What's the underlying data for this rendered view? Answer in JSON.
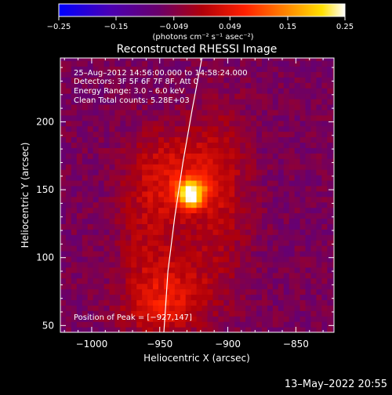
{
  "chart_data": {
    "type": "heatmap",
    "title": "Reconstructed RHESSI Image",
    "xlabel": "Heliocentric X (arcsec)",
    "ylabel": "Heliocentric Y (arcsec)",
    "xlim": [
      -1023,
      -822
    ],
    "ylim": [
      45,
      247
    ],
    "xticks": [
      -1000,
      -950,
      -900,
      -850
    ],
    "yticks": [
      50,
      100,
      150,
      200
    ],
    "xtick_labels": [
      "−1000",
      "−950",
      "−900",
      "−850"
    ],
    "ytick_labels": [
      "50",
      "100",
      "150",
      "200"
    ],
    "colorbar": {
      "range": [
        -0.25,
        0.25
      ],
      "ticks": [
        -0.25,
        -0.15,
        -0.049,
        0.049,
        0.15,
        0.25
      ],
      "tick_labels": [
        "−0.25",
        "−0.15",
        "−0.049",
        "0.049",
        "0.15",
        "0.25"
      ],
      "units_label": "(photons cm⁻² s⁻¹ asec⁻²)",
      "colormap": "blue-purple-red-yellow-white"
    },
    "annotations": {
      "time": "25–Aug–2012 14:56:00.000 to 14:58:24.000",
      "detectors": "Detectors: 3F 5F 6F 7F 8F, Att 0",
      "energy": "Energy Range: 3.0 – 6.0 keV",
      "clean": "Clean     Total counts: 5.28E+03",
      "peak": "Position of Peak = [−927,147]"
    },
    "peak": {
      "x": -927,
      "y": 147,
      "value": 0.25
    },
    "limb_curve": [
      [
        -947,
        45
      ],
      [
        -944,
        90
      ],
      [
        -939,
        130
      ],
      [
        -933,
        170
      ],
      [
        -926,
        210
      ],
      [
        -919,
        247
      ]
    ],
    "sources": [
      {
        "x": -927,
        "y": 147,
        "amp": 0.26,
        "sx": 7,
        "sy": 7
      },
      {
        "x": -935,
        "y": 160,
        "amp": 0.09,
        "sx": 20,
        "sy": 24
      },
      {
        "x": -905,
        "y": 150,
        "amp": 0.06,
        "sx": 15,
        "sy": 45
      },
      {
        "x": -940,
        "y": 80,
        "amp": 0.08,
        "sx": 22,
        "sy": 20
      },
      {
        "x": -960,
        "y": 130,
        "amp": 0.05,
        "sx": 15,
        "sy": 40
      },
      {
        "x": -950,
        "y": 60,
        "amp": 0.06,
        "sx": 20,
        "sy": 12
      }
    ],
    "background_level": -0.06,
    "grid": false
  },
  "footer": {
    "timestamp": "13–May–2022 20:55"
  },
  "colors": {
    "background": "#000000",
    "foreground": "#ffffff"
  }
}
